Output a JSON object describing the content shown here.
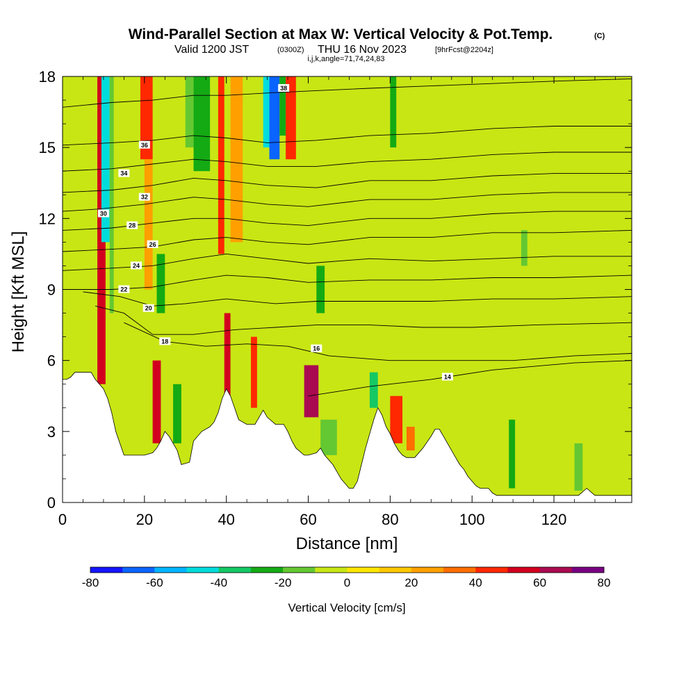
{
  "header": {
    "title": "Wind-Parallel Section at Max W: Vertical Velocity & Pot.Temp.",
    "title_tag": "(C)",
    "valid_prefix": "Valid 1200 JST",
    "valid_utc": "(0300Z)",
    "valid_date": "THU 16 Nov 2023",
    "forecast": "[9hrFcst@2204z]",
    "indices": "i,j,k,angle=71,74,24,83"
  },
  "chart_data": {
    "type": "heatmap",
    "xlabel": "Distance [nm]",
    "ylabel": "Height [Kft MSL]",
    "xlim": [
      0,
      139
    ],
    "ylim": [
      0,
      18
    ],
    "x_ticks": [
      0,
      20,
      40,
      60,
      80,
      100,
      120
    ],
    "y_ticks": [
      0,
      3,
      6,
      9,
      12,
      15,
      18
    ],
    "x_tick_labels": [
      "0",
      "20",
      "40",
      "60",
      "80",
      "100",
      "120"
    ],
    "y_tick_labels": [
      "0",
      "3",
      "6",
      "9",
      "12",
      "15",
      "18"
    ],
    "colorbar": {
      "title": "Vertical Velocity [cm/s]",
      "min": -80,
      "max": 80,
      "step": 10,
      "tick_values": [
        -80,
        -60,
        -40,
        -20,
        0,
        20,
        40,
        60,
        80
      ],
      "tick_labels": [
        "-80",
        "-60",
        "-40",
        "-20",
        "0",
        "20",
        "40",
        "60",
        "80"
      ],
      "colors": [
        "#1414ff",
        "#0a64ff",
        "#00b4ff",
        "#00dcdc",
        "#14c864",
        "#14aa14",
        "#64c832",
        "#c8e614",
        "#ffe600",
        "#ffc800",
        "#ffa000",
        "#ff6e00",
        "#ff2800",
        "#d2001e",
        "#aa0a50",
        "#780082"
      ]
    },
    "terrain_profile": [
      [
        0,
        5.2
      ],
      [
        1,
        5.2
      ],
      [
        2,
        5.3
      ],
      [
        3,
        5.5
      ],
      [
        5,
        5.5
      ],
      [
        7,
        5.5
      ],
      [
        8,
        5.2
      ],
      [
        10,
        4.8
      ],
      [
        11,
        4.4
      ],
      [
        12,
        3.8
      ],
      [
        13,
        3.0
      ],
      [
        14,
        2.5
      ],
      [
        15,
        2.0
      ],
      [
        18,
        2.0
      ],
      [
        20,
        2.0
      ],
      [
        22,
        2.1
      ],
      [
        23,
        2.3
      ],
      [
        24,
        2.6
      ],
      [
        25,
        3.0
      ],
      [
        26,
        2.8
      ],
      [
        28,
        2.2
      ],
      [
        29,
        1.6
      ],
      [
        31,
        1.7
      ],
      [
        32,
        2.6
      ],
      [
        34,
        3.0
      ],
      [
        36,
        3.2
      ],
      [
        37,
        3.4
      ],
      [
        38,
        3.8
      ],
      [
        39,
        4.4
      ],
      [
        40,
        4.8
      ],
      [
        41,
        4.5
      ],
      [
        42,
        4.0
      ],
      [
        43,
        3.5
      ],
      [
        45,
        3.3
      ],
      [
        47,
        3.3
      ],
      [
        48,
        3.6
      ],
      [
        49,
        3.9
      ],
      [
        50,
        3.6
      ],
      [
        52,
        3.3
      ],
      [
        54,
        3.3
      ],
      [
        55,
        3.0
      ],
      [
        56,
        2.6
      ],
      [
        57,
        2.3
      ],
      [
        59,
        2.0
      ],
      [
        60,
        2.0
      ],
      [
        62,
        2.1
      ],
      [
        63,
        2.3
      ],
      [
        64,
        2.0
      ],
      [
        66,
        1.6
      ],
      [
        67,
        1.3
      ],
      [
        68,
        1.0
      ],
      [
        69,
        0.8
      ],
      [
        70,
        0.6
      ],
      [
        71,
        0.6
      ],
      [
        72,
        0.9
      ],
      [
        73,
        1.6
      ],
      [
        74,
        2.3
      ],
      [
        75,
        2.9
      ],
      [
        76,
        3.5
      ],
      [
        77,
        4.0
      ],
      [
        78,
        3.7
      ],
      [
        79,
        3.2
      ],
      [
        80,
        2.9
      ],
      [
        81,
        2.5
      ],
      [
        82,
        2.2
      ],
      [
        83,
        2.0
      ],
      [
        84,
        1.9
      ],
      [
        86,
        1.9
      ],
      [
        88,
        2.3
      ],
      [
        90,
        2.8
      ],
      [
        91,
        3.1
      ],
      [
        92,
        3.1
      ],
      [
        93,
        2.8
      ],
      [
        94,
        2.5
      ],
      [
        95,
        2.2
      ],
      [
        96,
        1.9
      ],
      [
        97,
        1.6
      ],
      [
        98,
        1.4
      ],
      [
        99,
        1.1
      ],
      [
        100,
        0.9
      ],
      [
        101,
        0.7
      ],
      [
        102,
        0.6
      ],
      [
        104,
        0.6
      ],
      [
        105,
        0.4
      ],
      [
        106,
        0.3
      ],
      [
        108,
        0.3
      ],
      [
        110,
        0.3
      ],
      [
        112,
        0.3
      ],
      [
        114,
        0.3
      ],
      [
        116,
        0.3
      ],
      [
        118,
        0.3
      ],
      [
        120,
        0.3
      ],
      [
        122,
        0.3
      ],
      [
        124,
        0.3
      ],
      [
        126,
        0.3
      ],
      [
        128,
        0.6
      ],
      [
        130,
        0.3
      ],
      [
        133,
        0.3
      ],
      [
        136,
        0.3
      ],
      [
        139,
        0.3
      ]
    ],
    "theta_contours": [
      {
        "level": "14",
        "label_x": 94,
        "label_y": 5.3,
        "points": [
          [
            60,
            4.5
          ],
          [
            75,
            4.9
          ],
          [
            90,
            5.2
          ],
          [
            105,
            5.6
          ],
          [
            125,
            5.9
          ],
          [
            139,
            6.0
          ]
        ]
      },
      {
        "level": "16",
        "label_x": 62,
        "label_y": 6.5,
        "points": [
          [
            15,
            7.6
          ],
          [
            25,
            6.8
          ],
          [
            35,
            6.6
          ],
          [
            45,
            6.7
          ],
          [
            55,
            6.6
          ],
          [
            65,
            6.2
          ],
          [
            80,
            6.0
          ],
          [
            95,
            6.0
          ],
          [
            110,
            6.0
          ],
          [
            125,
            6.2
          ],
          [
            139,
            6.3
          ]
        ]
      },
      {
        "level": "18",
        "label_x": 25,
        "label_y": 6.8,
        "points": [
          [
            8,
            8.3
          ],
          [
            15,
            8.0
          ],
          [
            22,
            7.1
          ],
          [
            32,
            7.1
          ],
          [
            42,
            7.3
          ],
          [
            52,
            7.4
          ],
          [
            62,
            7.5
          ],
          [
            75,
            7.5
          ],
          [
            88,
            7.4
          ],
          [
            100,
            7.4
          ],
          [
            115,
            7.5
          ],
          [
            139,
            7.6
          ]
        ]
      },
      {
        "level": "20",
        "label_x": 21,
        "label_y": 8.2,
        "points": [
          [
            5,
            8.9
          ],
          [
            14,
            8.7
          ],
          [
            22,
            8.3
          ],
          [
            30,
            8.4
          ],
          [
            40,
            8.6
          ],
          [
            52,
            8.4
          ],
          [
            62,
            8.5
          ],
          [
            75,
            8.5
          ],
          [
            90,
            8.5
          ],
          [
            105,
            8.6
          ],
          [
            120,
            8.6
          ],
          [
            139,
            8.7
          ]
        ]
      },
      {
        "level": "22",
        "label_x": 15,
        "label_y": 9.0,
        "points": [
          [
            0,
            9.0
          ],
          [
            12,
            9.0
          ],
          [
            22,
            9.1
          ],
          [
            32,
            9.4
          ],
          [
            40,
            9.6
          ],
          [
            50,
            9.5
          ],
          [
            60,
            9.3
          ],
          [
            75,
            9.4
          ],
          [
            90,
            9.4
          ],
          [
            105,
            9.5
          ],
          [
            120,
            9.5
          ],
          [
            139,
            9.6
          ]
        ]
      },
      {
        "level": "24",
        "label_x": 18,
        "label_y": 10.0,
        "points": [
          [
            0,
            9.8
          ],
          [
            12,
            9.9
          ],
          [
            22,
            10.0
          ],
          [
            32,
            10.3
          ],
          [
            40,
            10.5
          ],
          [
            50,
            10.3
          ],
          [
            60,
            10.1
          ],
          [
            75,
            10.3
          ],
          [
            90,
            10.2
          ],
          [
            105,
            10.3
          ],
          [
            120,
            10.4
          ],
          [
            139,
            10.4
          ]
        ]
      },
      {
        "level": "26",
        "label_x": 22,
        "label_y": 10.9,
        "points": [
          [
            0,
            10.6
          ],
          [
            12,
            10.7
          ],
          [
            22,
            10.8
          ],
          [
            32,
            11.1
          ],
          [
            40,
            11.2
          ],
          [
            50,
            11.0
          ],
          [
            60,
            10.9
          ],
          [
            75,
            11.2
          ],
          [
            90,
            11.2
          ],
          [
            105,
            11.4
          ],
          [
            120,
            11.4
          ],
          [
            139,
            11.5
          ]
        ]
      },
      {
        "level": "28",
        "label_x": 17,
        "label_y": 11.7,
        "points": [
          [
            0,
            11.5
          ],
          [
            12,
            11.6
          ],
          [
            22,
            11.8
          ],
          [
            32,
            12.0
          ],
          [
            40,
            12.0
          ],
          [
            50,
            11.8
          ],
          [
            60,
            11.7
          ],
          [
            75,
            12.0
          ],
          [
            90,
            12.0
          ],
          [
            105,
            12.2
          ],
          [
            120,
            12.3
          ],
          [
            139,
            12.3
          ]
        ]
      },
      {
        "level": "30",
        "label_x": 10,
        "label_y": 12.2,
        "points": [
          [
            0,
            12.3
          ],
          [
            9,
            12.4
          ],
          [
            20,
            12.6
          ],
          [
            32,
            12.9
          ],
          [
            40,
            12.8
          ],
          [
            50,
            12.6
          ],
          [
            60,
            12.5
          ],
          [
            75,
            12.8
          ],
          [
            90,
            12.8
          ],
          [
            105,
            13.0
          ],
          [
            120,
            13.1
          ],
          [
            139,
            13.1
          ]
        ]
      },
      {
        "level": "32",
        "label_x": 20,
        "label_y": 12.9,
        "points": [
          [
            0,
            13.1
          ],
          [
            12,
            13.2
          ],
          [
            22,
            13.4
          ],
          [
            32,
            13.7
          ],
          [
            40,
            13.6
          ],
          [
            50,
            13.4
          ],
          [
            62,
            13.3
          ],
          [
            75,
            13.6
          ],
          [
            90,
            13.6
          ],
          [
            105,
            13.8
          ],
          [
            120,
            13.9
          ],
          [
            139,
            13.9
          ]
        ]
      },
      {
        "level": "34",
        "label_x": 15,
        "label_y": 13.9,
        "points": [
          [
            0,
            14.0
          ],
          [
            12,
            14.1
          ],
          [
            22,
            14.3
          ],
          [
            32,
            14.5
          ],
          [
            40,
            14.4
          ],
          [
            50,
            14.2
          ],
          [
            62,
            14.2
          ],
          [
            75,
            14.4
          ],
          [
            90,
            14.5
          ],
          [
            105,
            14.7
          ],
          [
            120,
            14.8
          ],
          [
            139,
            14.8
          ]
        ]
      },
      {
        "level": "36",
        "label_x": 20,
        "label_y": 15.1,
        "points": [
          [
            0,
            15.1
          ],
          [
            12,
            15.2
          ],
          [
            22,
            15.3
          ],
          [
            32,
            15.5
          ],
          [
            40,
            15.4
          ],
          [
            50,
            15.2
          ],
          [
            62,
            15.3
          ],
          [
            75,
            15.5
          ],
          [
            90,
            15.6
          ],
          [
            105,
            15.8
          ],
          [
            120,
            15.9
          ],
          [
            139,
            15.9
          ]
        ]
      },
      {
        "level": "38",
        "label_x": 54,
        "label_y": 17.5,
        "points": [
          [
            0,
            16.7
          ],
          [
            12,
            16.9
          ],
          [
            22,
            17.0
          ],
          [
            32,
            17.2
          ],
          [
            40,
            17.2
          ],
          [
            50,
            17.3
          ],
          [
            62,
            17.4
          ],
          [
            75,
            17.5
          ],
          [
            90,
            17.6
          ],
          [
            105,
            17.7
          ],
          [
            120,
            17.8
          ],
          [
            139,
            17.9
          ]
        ]
      }
    ],
    "velocity_cells": [
      {
        "x0": 8.5,
        "x1": 10.5,
        "y0": 5.0,
        "y1": 18,
        "value": 55
      },
      {
        "x0": 9.5,
        "x1": 11.5,
        "y0": 11,
        "y1": 18,
        "value": -45
      },
      {
        "x0": 11.5,
        "x1": 12.5,
        "y0": 8,
        "y1": 18,
        "value": -20
      },
      {
        "x0": 19,
        "x1": 22,
        "y0": 14.5,
        "y1": 18,
        "value": 45
      },
      {
        "x0": 20,
        "x1": 22,
        "y0": 9,
        "y1": 14.5,
        "value": 25
      },
      {
        "x0": 22,
        "x1": 24,
        "y0": 2.5,
        "y1": 6,
        "value": 55
      },
      {
        "x0": 23,
        "x1": 25,
        "y0": 8,
        "y1": 10.5,
        "value": -25
      },
      {
        "x0": 27,
        "x1": 29,
        "y0": 2.5,
        "y1": 5,
        "value": -25
      },
      {
        "x0": 30,
        "x1": 32,
        "y0": 15,
        "y1": 18,
        "value": -20
      },
      {
        "x0": 32,
        "x1": 36,
        "y0": 14,
        "y1": 18,
        "value": -25
      },
      {
        "x0": 38,
        "x1": 39.5,
        "y0": 10.5,
        "y1": 18,
        "value": 45
      },
      {
        "x0": 39.5,
        "x1": 41,
        "y0": 4.5,
        "y1": 8,
        "value": 55
      },
      {
        "x0": 41,
        "x1": 44,
        "y0": 11,
        "y1": 18,
        "value": 25
      },
      {
        "x0": 49,
        "x1": 50.5,
        "y0": 15,
        "y1": 18,
        "value": -45
      },
      {
        "x0": 50.5,
        "x1": 53,
        "y0": 14.5,
        "y1": 18,
        "value": -65
      },
      {
        "x0": 53,
        "x1": 54.5,
        "y0": 15.5,
        "y1": 18,
        "value": -30
      },
      {
        "x0": 54.5,
        "x1": 57,
        "y0": 14.5,
        "y1": 18,
        "value": 45
      },
      {
        "x0": 46,
        "x1": 47.5,
        "y0": 4,
        "y1": 7,
        "value": 45
      },
      {
        "x0": 59,
        "x1": 62.5,
        "y0": 3.6,
        "y1": 5.8,
        "value": 60
      },
      {
        "x0": 62,
        "x1": 64,
        "y0": 8,
        "y1": 10,
        "value": -25
      },
      {
        "x0": 63,
        "x1": 67,
        "y0": 2,
        "y1": 3.5,
        "value": -20
      },
      {
        "x0": 75,
        "x1": 77,
        "y0": 4,
        "y1": 5.5,
        "value": -35
      },
      {
        "x0": 80,
        "x1": 83,
        "y0": 2.5,
        "y1": 4.5,
        "value": 40
      },
      {
        "x0": 84,
        "x1": 86,
        "y0": 2.2,
        "y1": 3.2,
        "value": 35
      },
      {
        "x0": 80,
        "x1": 81.5,
        "y0": 15,
        "y1": 18,
        "value": -25
      },
      {
        "x0": 109,
        "x1": 110.5,
        "y0": 0.6,
        "y1": 3.5,
        "value": -25
      },
      {
        "x0": 112,
        "x1": 113.5,
        "y0": 10,
        "y1": 11.5,
        "value": -15
      },
      {
        "x0": 125,
        "x1": 127,
        "y0": 0.5,
        "y1": 2.5,
        "value": -20
      }
    ]
  }
}
